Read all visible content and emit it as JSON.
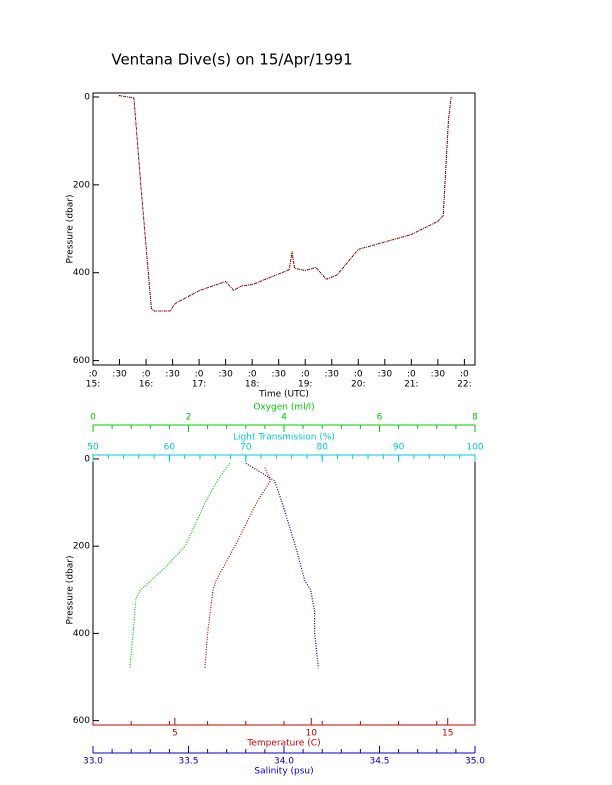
{
  "chart_data": [
    {
      "type": "line",
      "title": "Ventana Dive(s) on 15/Apr/1991",
      "xlabel": "Time (UTC)",
      "ylabel": "Pressure (dbar)",
      "xlim": [
        15,
        22.2
      ],
      "ylim": [
        -9,
        610
      ],
      "yticks": [
        0,
        200,
        400,
        600
      ],
      "xticks": [
        {
          "value": 15,
          "label": ":0"
        },
        {
          "value": 15.5,
          "label": ":30"
        },
        {
          "value": 16,
          "label": ":0"
        },
        {
          "value": 16.5,
          "label": ":30"
        },
        {
          "value": 17,
          "label": ":0"
        },
        {
          "value": 17.5,
          "label": ":30"
        },
        {
          "value": 18,
          "label": ":0"
        },
        {
          "value": 18.5,
          "label": ":30"
        },
        {
          "value": 19,
          "label": ":0"
        },
        {
          "value": 19.5,
          "label": ":30"
        },
        {
          "value": 20,
          "label": ":0"
        },
        {
          "value": 20.5,
          "label": ":30"
        },
        {
          "value": 21,
          "label": ":0"
        },
        {
          "value": 21.5,
          "label": ":30"
        },
        {
          "value": 22,
          "label": ":0"
        }
      ],
      "xtick_hours": [
        {
          "value": 15,
          "label": "15:"
        },
        {
          "value": 16,
          "label": "16:"
        },
        {
          "value": 17,
          "label": "17:"
        },
        {
          "value": 18,
          "label": "18:"
        },
        {
          "value": 19,
          "label": "19:"
        },
        {
          "value": 20,
          "label": "20:"
        },
        {
          "value": 21,
          "label": "21:"
        },
        {
          "value": 22,
          "label": "22:"
        }
      ],
      "color": "#cc0000",
      "x": [
        15.49,
        15.77,
        15.9,
        16.1,
        16.15,
        16.45,
        16.55,
        17.0,
        17.5,
        17.65,
        17.8,
        18.0,
        18.5,
        18.7,
        18.75,
        18.8,
        19.0,
        19.2,
        19.4,
        19.6,
        20.0,
        20.5,
        21.0,
        21.5,
        21.6,
        21.7,
        21.75
      ],
      "values": [
        -3,
        2,
        200,
        482,
        487,
        487,
        470,
        441,
        420,
        440,
        430,
        427,
        403,
        393,
        352,
        390,
        395,
        388,
        415,
        405,
        347,
        330,
        313,
        283,
        270,
        52,
        0
      ]
    },
    {
      "type": "profile",
      "ylabel": "Pressure (dbar)",
      "ylim": [
        -9,
        610
      ],
      "yticks": [
        0,
        200,
        400,
        600
      ],
      "axes": [
        {
          "label": "Oxygen (ml/l)",
          "color": "#00cc00",
          "position": "top",
          "xlim": [
            0,
            8
          ],
          "xticks": [
            0,
            2,
            4,
            6,
            8
          ]
        },
        {
          "label": "Light Transmission (%)",
          "color": "#00cccc",
          "position": "top",
          "xlim": [
            50,
            100
          ],
          "xticks": [
            50,
            60,
            70,
            80,
            90,
            100
          ]
        },
        {
          "label": "Temperature (C)",
          "color": "#cc0000",
          "position": "bottom",
          "xlim": [
            2,
            16
          ],
          "xticks": [
            5,
            10,
            15
          ]
        },
        {
          "label": "Salinity (psu)",
          "color": "#0000cc",
          "position": "bottom",
          "xlim": [
            33,
            35
          ],
          "xticks": [
            {
              "value": 33,
              "label": "33.0"
            },
            {
              "value": 33.5,
              "label": "33.5"
            },
            {
              "value": 34,
              "label": "34.0"
            },
            {
              "value": 34.5,
              "label": "34.5"
            },
            {
              "value": 35,
              "label": "35.0"
            }
          ]
        }
      ],
      "series": [
        {
          "axis": 0,
          "color": "#00cc00",
          "x": [
            2.87,
            2.6,
            2.35,
            1.93,
            1.5,
            1.2,
            1.0,
            0.9,
            0.84,
            0.77
          ],
          "values": [
            10,
            50,
            100,
            200,
            250,
            280,
            300,
            320,
            400,
            480
          ]
        },
        {
          "axis": 2,
          "color": "#cc0000",
          "x": [
            8.3,
            8.5,
            8.0,
            7.2,
            6.5,
            6.4,
            6.3,
            6.2,
            6.1
          ],
          "values": [
            20,
            50,
            100,
            200,
            280,
            300,
            350,
            400,
            480
          ]
        },
        {
          "axis": 3,
          "color": "#0000cc",
          "x": [
            33.8,
            33.95,
            33.99,
            34.06,
            34.11,
            34.14,
            34.16,
            34.16,
            34.18
          ],
          "values": [
            10,
            50,
            100,
            200,
            280,
            300,
            350,
            400,
            480
          ]
        }
      ]
    }
  ]
}
